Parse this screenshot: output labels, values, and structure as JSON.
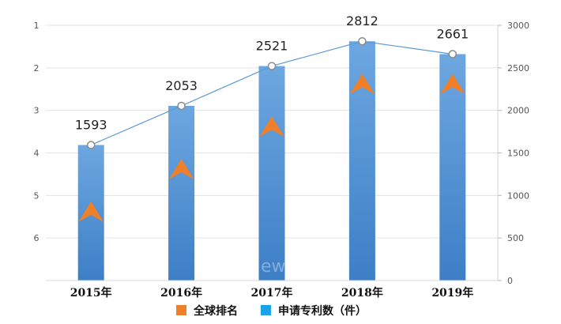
{
  "chart_data": {
    "type": "bar",
    "categories": [
      "2015年",
      "2016年",
      "2017年",
      "2018年",
      "2019年"
    ],
    "series": [
      {
        "name": "申请专利数（件）",
        "type": "bar",
        "axis": "right",
        "values": [
          1593,
          2053,
          2521,
          2812,
          2661
        ],
        "data_labels": [
          "1593",
          "2053",
          "2521",
          "2812",
          "2661"
        ],
        "color": "#4a8fd6"
      },
      {
        "name": "申请专利数（件）",
        "type": "line",
        "axis": "right",
        "values": [
          1593,
          2053,
          2521,
          2812,
          2661
        ],
        "color": "#5b9bd5"
      },
      {
        "name": "全球排名",
        "type": "marker",
        "marker": "chevron-up",
        "axis": "left",
        "values": [
          5.4,
          4.4,
          3.4,
          2.4,
          2.4
        ],
        "color": "#f07f2a"
      }
    ],
    "y_left": {
      "ticks": [
        "1",
        "2",
        "3",
        "4",
        "5",
        "6"
      ],
      "range": [
        7,
        1
      ],
      "inverted": true
    },
    "y_right": {
      "ticks": [
        "0",
        "500",
        "1000",
        "1500",
        "2000",
        "2500",
        "3000"
      ],
      "range": [
        0,
        3000
      ]
    },
    "grid": true,
    "legend": {
      "position": "bottom",
      "items": [
        {
          "label": "全球排名",
          "color": "#f07f2a"
        },
        {
          "label": "申请专利数（件）",
          "color": "#1aa3e8"
        }
      ]
    },
    "watermark": "ew"
  }
}
